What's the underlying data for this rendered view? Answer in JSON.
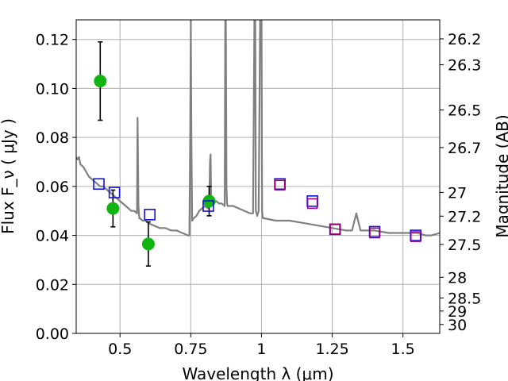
{
  "chart_data": {
    "type": "scatter",
    "xlabel": "Wavelength  λ (μm)",
    "ylabel": "Flux  F_ν  ( μJy )",
    "y2label": "Magnitude (AB)",
    "xlim": [
      0.345,
      1.63
    ],
    "ylim": [
      0.0,
      0.128
    ],
    "grid": true,
    "x_ticks": [
      0.5,
      0.75,
      1,
      1.25,
      1.5
    ],
    "x_tick_labels": [
      "0.5",
      "0.75",
      "1",
      "1.25",
      "1.5"
    ],
    "y_ticks": [
      0.0,
      0.02,
      0.04,
      0.06,
      0.08,
      0.1,
      0.12
    ],
    "y_tick_labels": [
      "0.00",
      "0.02",
      "0.04",
      "0.06",
      "0.08",
      "0.10",
      "0.12"
    ],
    "mag_ticks": [
      26.2,
      26.3,
      26.5,
      26.7,
      27,
      27.2,
      27.5,
      28,
      28.5,
      29,
      30
    ],
    "mag_tick_labels": [
      "26.2",
      "26.3",
      "26.5",
      "26.7",
      "27",
      "27.2",
      "27.5",
      "28",
      "28.5",
      "29",
      "30"
    ],
    "colors": {
      "model": "#808080",
      "observed": "#11b511",
      "model_photometry": "#1111dd",
      "hst_photometry": "#a0007a",
      "error_bar": "#000000",
      "grid": "#b0b0b0"
    },
    "series": [
      {
        "kind": "model-spectrum",
        "x": [
          0.345,
          0.35,
          0.355,
          0.36,
          0.37,
          0.38,
          0.39,
          0.4,
          0.41,
          0.42,
          0.43,
          0.44,
          0.45,
          0.46,
          0.47,
          0.48,
          0.49,
          0.5,
          0.51,
          0.52,
          0.53,
          0.54,
          0.55,
          0.56,
          0.562,
          0.565,
          0.568,
          0.57,
          0.58,
          0.59,
          0.6,
          0.62,
          0.64,
          0.66,
          0.68,
          0.7,
          0.72,
          0.74,
          0.745,
          0.748,
          0.75,
          0.752,
          0.755,
          0.76,
          0.77,
          0.78,
          0.79,
          0.8,
          0.81,
          0.815,
          0.818,
          0.82,
          0.822,
          0.825,
          0.83,
          0.84,
          0.85,
          0.86,
          0.87,
          0.872,
          0.874,
          0.876,
          0.878,
          0.88,
          0.9,
          0.92,
          0.94,
          0.96,
          0.97,
          0.975,
          0.978,
          0.98,
          0.985,
          0.99,
          0.995,
          0.998,
          1.0,
          1.002,
          1.005,
          1.01,
          1.05,
          1.1,
          1.15,
          1.2,
          1.25,
          1.3,
          1.32,
          1.335,
          1.35,
          1.4,
          1.45,
          1.5,
          1.55,
          1.58,
          1.6,
          1.63
        ],
        "y": [
          0.072,
          0.071,
          0.072,
          0.069,
          0.068,
          0.066,
          0.064,
          0.063,
          0.062,
          0.061,
          0.06,
          0.06,
          0.059,
          0.058,
          0.057,
          0.056,
          0.055,
          0.054,
          0.053,
          0.052,
          0.051,
          0.05,
          0.05,
          0.049,
          0.088,
          0.052,
          0.047,
          0.047,
          0.046,
          0.046,
          0.045,
          0.044,
          0.043,
          0.043,
          0.042,
          0.042,
          0.041,
          0.04,
          0.04,
          0.08,
          0.128,
          0.08,
          0.046,
          0.047,
          0.048,
          0.05,
          0.051,
          0.052,
          0.051,
          0.052,
          0.07,
          0.073,
          0.055,
          0.053,
          0.053,
          0.054,
          0.053,
          0.053,
          0.052,
          0.128,
          0.128,
          0.06,
          0.053,
          0.052,
          0.052,
          0.051,
          0.05,
          0.049,
          0.049,
          0.128,
          0.128,
          0.05,
          0.048,
          0.05,
          0.128,
          0.128,
          0.128,
          0.05,
          0.047,
          0.047,
          0.046,
          0.046,
          0.045,
          0.044,
          0.043,
          0.042,
          0.042,
          0.049,
          0.042,
          0.042,
          0.041,
          0.041,
          0.041,
          0.04,
          0.04,
          0.041
        ]
      },
      {
        "kind": "observed-flux",
        "x": [
          0.43,
          0.475,
          0.6,
          0.815
        ],
        "y": [
          0.103,
          0.051,
          0.0365,
          0.054
        ],
        "err": [
          0.016,
          0.0075,
          0.009,
          0.006
        ]
      },
      {
        "kind": "model-photometry",
        "x": [
          0.425,
          0.48,
          0.605,
          0.812,
          1.065,
          1.18,
          1.26,
          1.4,
          1.545
        ],
        "y": [
          0.061,
          0.0575,
          0.0485,
          0.052,
          0.061,
          0.054,
          0.0425,
          0.0415,
          0.04
        ]
      },
      {
        "kind": "hst-photometry",
        "x": [
          1.065,
          1.18,
          1.26,
          1.4,
          1.545
        ],
        "y": [
          0.0605,
          0.053,
          0.0425,
          0.041,
          0.0395
        ]
      }
    ]
  }
}
